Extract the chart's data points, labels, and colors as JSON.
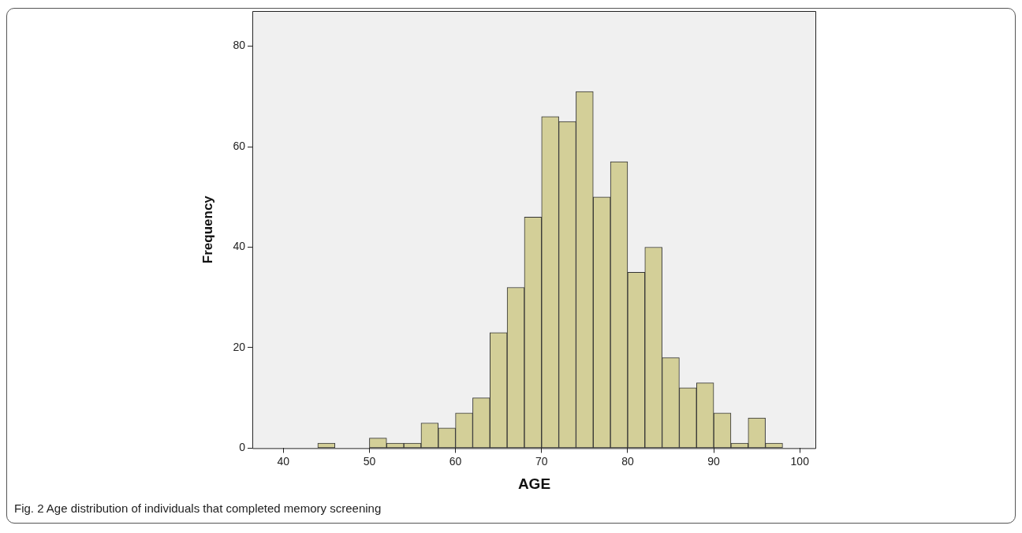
{
  "chart_data": {
    "type": "histogram",
    "xlabel": "AGE",
    "ylabel": "Frequency",
    "bins": [
      44,
      46,
      48,
      50,
      52,
      54,
      56,
      58,
      60,
      62,
      64,
      66,
      68,
      70,
      72,
      74,
      76,
      78,
      80,
      82,
      84,
      86,
      88,
      90,
      92,
      94,
      96,
      98
    ],
    "values": [
      1,
      0,
      0,
      2,
      1,
      1,
      5,
      4,
      7,
      10,
      23,
      32,
      46,
      66,
      65,
      71,
      50,
      57,
      35,
      40,
      18,
      12,
      13,
      7,
      1,
      6,
      1
    ],
    "color": "#d3cf98",
    "xlim": [
      36.4,
      101.9
    ],
    "xticks": [
      40,
      50,
      60,
      70,
      80,
      90,
      100
    ],
    "ylim": [
      0,
      87
    ],
    "yticks": [
      0,
      20,
      40,
      60,
      80
    ],
    "grid": false,
    "legend": false,
    "annotations": [
      "Fig. 2 Age distribution of individuals that completed memory screening"
    ]
  }
}
